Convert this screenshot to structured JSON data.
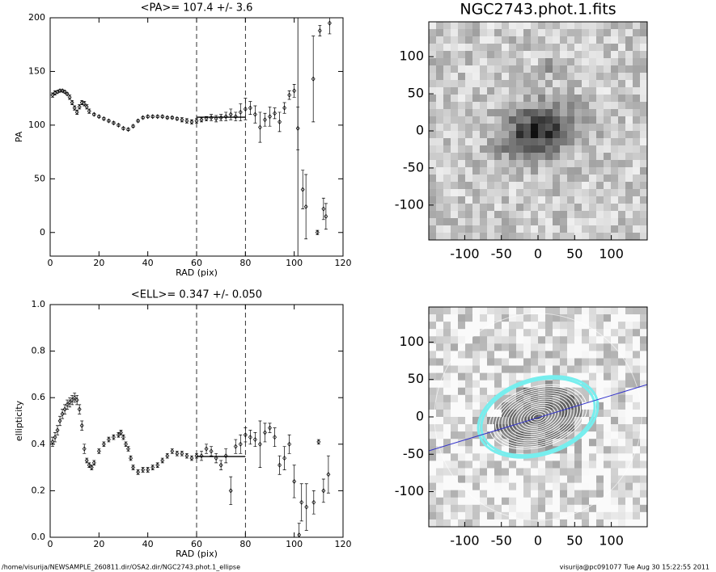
{
  "chart_data": [
    {
      "type": "scatter",
      "title": "<PA>= 107.4 +/-   3.6",
      "xlabel": "RAD (pix)",
      "ylabel": "PA",
      "x": [
        1,
        2,
        3,
        4,
        5,
        6,
        7,
        8,
        9,
        10,
        11,
        12,
        13,
        14,
        15,
        16,
        18,
        20,
        22,
        24,
        26,
        28,
        30,
        32,
        34,
        36,
        38,
        40,
        42,
        44,
        46,
        48,
        50,
        52,
        54,
        56,
        58,
        60,
        62,
        64,
        66,
        68,
        70,
        72,
        74,
        76,
        78,
        80,
        82,
        84,
        86,
        88,
        90,
        92,
        94,
        96,
        98,
        100,
        101.5,
        103.5,
        104.8,
        107.8,
        109.5,
        110.5,
        112,
        113,
        114.5
      ],
      "values": [
        128,
        130,
        131,
        132,
        132,
        131,
        129,
        126,
        121,
        116,
        112,
        117,
        121,
        120,
        117,
        113,
        110,
        108,
        106,
        104,
        102,
        100,
        97,
        96,
        99,
        104,
        107,
        108,
        108,
        108,
        108,
        107,
        107,
        106,
        105,
        104,
        103,
        104,
        105,
        106,
        107,
        106,
        107,
        108,
        110,
        108,
        112,
        115,
        116,
        110,
        98,
        105,
        108,
        111,
        103,
        116,
        128,
        132,
        97,
        40,
        24,
        143,
        0,
        188,
        22,
        15,
        195
      ],
      "errors": [
        2,
        2,
        1,
        1,
        1,
        1,
        1,
        2,
        2,
        2,
        2,
        2,
        2,
        2,
        2,
        2,
        1,
        1,
        1,
        1,
        1,
        1,
        1,
        1,
        1,
        1,
        1,
        1,
        1,
        1,
        1,
        1,
        1,
        1,
        2,
        2,
        2,
        2,
        2,
        2,
        3,
        3,
        3,
        4,
        5,
        4,
        8,
        10,
        6,
        8,
        14,
        6,
        9,
        5,
        9,
        5,
        4,
        6,
        20,
        18,
        30,
        40,
        2,
        5,
        10,
        12,
        10
      ],
      "xlim": [
        0,
        120
      ],
      "ylim": [
        -22,
        200
      ],
      "xticks": [
        0,
        20,
        40,
        60,
        80,
        100,
        120
      ],
      "yticks": [
        0,
        50,
        100,
        150,
        200
      ],
      "vlines": [
        {
          "x": 60,
          "style": "dashed"
        },
        {
          "x": 80,
          "style": "dashed"
        },
        {
          "x": 101.5,
          "style": "solid"
        }
      ],
      "hline": {
        "y": 107.4,
        "x": [
          60,
          80
        ]
      }
    },
    {
      "type": "image",
      "title": "NGC2743.phot.1.fits",
      "xlim": [
        -149,
        149
      ],
      "ylim": [
        -147,
        147
      ],
      "xticks": [
        -100,
        -50,
        0,
        50,
        100
      ],
      "yticks": [
        -100,
        -50,
        0,
        50,
        100
      ]
    },
    {
      "type": "scatter",
      "title": "<ELL>= 0.347 +/-  0.050",
      "xlabel": "RAD (pix)",
      "ylabel": "ellipticity",
      "x": [
        1,
        2,
        3,
        4,
        5,
        6,
        7,
        8,
        9,
        10,
        11,
        12,
        13,
        14,
        15,
        16,
        17,
        18,
        20,
        22,
        24,
        26,
        28,
        29,
        30,
        31,
        32,
        33,
        34,
        36,
        38,
        40,
        42,
        44,
        46,
        48,
        50,
        52,
        54,
        56,
        58,
        60,
        62,
        64,
        66,
        68,
        70,
        72,
        74,
        76,
        78,
        80,
        82,
        84,
        86,
        88,
        90,
        92,
        94,
        96,
        98,
        100,
        102,
        103,
        105,
        108,
        110,
        112,
        114
      ],
      "values": [
        0.41,
        0.43,
        0.46,
        0.5,
        0.53,
        0.55,
        0.57,
        0.58,
        0.59,
        0.6,
        0.59,
        0.55,
        0.48,
        0.38,
        0.33,
        0.31,
        0.3,
        0.32,
        0.37,
        0.4,
        0.42,
        0.43,
        0.44,
        0.45,
        0.43,
        0.4,
        0.38,
        0.34,
        0.3,
        0.28,
        0.29,
        0.29,
        0.3,
        0.31,
        0.33,
        0.35,
        0.37,
        0.36,
        0.36,
        0.35,
        0.34,
        0.35,
        0.35,
        0.38,
        0.37,
        0.34,
        0.31,
        0.35,
        0.2,
        0.39,
        0.4,
        0.44,
        0.43,
        0.42,
        0.4,
        0.45,
        0.47,
        0.43,
        0.31,
        0.34,
        0.4,
        0.24,
        0.01,
        0.15,
        0.13,
        0.15,
        0.41,
        0.2,
        0.27
      ],
      "errors": [
        0.02,
        0.02,
        0.02,
        0.02,
        0.02,
        0.02,
        0.02,
        0.02,
        0.02,
        0.02,
        0.02,
        0.02,
        0.02,
        0.02,
        0.01,
        0.01,
        0.01,
        0.01,
        0.01,
        0.01,
        0.01,
        0.01,
        0.01,
        0.01,
        0.01,
        0.01,
        0.01,
        0.01,
        0.01,
        0.01,
        0.01,
        0.01,
        0.01,
        0.01,
        0.01,
        0.01,
        0.01,
        0.01,
        0.01,
        0.01,
        0.01,
        0.01,
        0.02,
        0.02,
        0.02,
        0.02,
        0.02,
        0.03,
        0.06,
        0.03,
        0.04,
        0.03,
        0.03,
        0.03,
        0.1,
        0.04,
        0.02,
        0.04,
        0.04,
        0.05,
        0.04,
        0.07,
        0.05,
        0.08,
        0.1,
        0.05,
        0.01,
        0.05,
        0.08
      ],
      "xlim": [
        0,
        120
      ],
      "ylim": [
        0,
        1
      ],
      "xticks": [
        0,
        20,
        40,
        60,
        80,
        100,
        120
      ],
      "yticks": [
        {
          "value": 0,
          "label": "0.0"
        },
        0.2,
        0.4,
        0.6,
        0.8,
        {
          "value": 1,
          "label": "1.0"
        }
      ],
      "vlines": [
        {
          "x": 60,
          "style": "dashed"
        },
        {
          "x": 80,
          "style": "dashed"
        }
      ],
      "hline": {
        "y": 0.347,
        "x": [
          60,
          80
        ]
      }
    },
    {
      "type": "image",
      "overlay": "isophotes",
      "xlim": [
        -149,
        149
      ],
      "ylim": [
        -147,
        147
      ],
      "xticks": [
        -100,
        -50,
        0,
        50,
        100
      ],
      "yticks": [
        -100,
        -50,
        0,
        50,
        100
      ]
    }
  ],
  "footer": {
    "left": "/home/visurija/NEWSAMPLE_260811.dir/OSA2.dir/NGC2743.phot.1_ellipse",
    "right": "visurija@pc091077  Tue Aug 30 15:22:55 2011"
  }
}
